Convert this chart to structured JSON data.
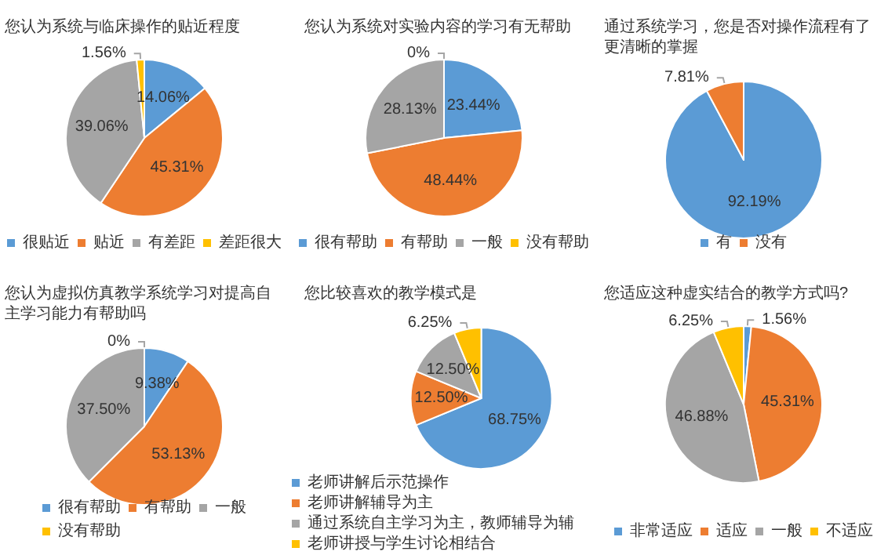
{
  "chart_data": [
    {
      "type": "pie",
      "title": "您认为系统与临床操作的贴近程度",
      "categories": [
        "很贴近",
        "贴近",
        "有差距",
        "差距很大"
      ],
      "values": [
        14.06,
        45.31,
        39.06,
        1.56
      ],
      "colors": [
        "#5b9bd5",
        "#ed7d31",
        "#a5a5a5",
        "#ffc000"
      ],
      "value_labels": [
        "14.06%",
        "45.31%",
        "39.06%",
        "1.56%"
      ],
      "legend": "bottom"
    },
    {
      "type": "pie",
      "title": "您认为系统对实验内容的学习有无帮助",
      "categories": [
        "很有帮助",
        "有帮助",
        "一般",
        "没有帮助"
      ],
      "values": [
        23.44,
        48.44,
        28.13,
        0
      ],
      "colors": [
        "#5b9bd5",
        "#ed7d31",
        "#a5a5a5",
        "#ffc000"
      ],
      "value_labels": [
        "23.44%",
        "48.44%",
        "28.13%",
        "0%"
      ],
      "legend": "bottom"
    },
    {
      "type": "pie",
      "title": "通过系统学习，您是否对操作流程有了更清晰的掌握",
      "categories": [
        "有",
        "没有"
      ],
      "values": [
        92.19,
        7.81
      ],
      "colors": [
        "#5b9bd5",
        "#ed7d31"
      ],
      "value_labels": [
        "92.19%",
        "7.81%"
      ],
      "legend": "bottom"
    },
    {
      "type": "pie",
      "title": "您认为虚拟仿真教学系统学习对提高自主学习能力有帮助吗",
      "categories": [
        "很有帮助",
        "有帮助",
        "一般",
        "没有帮助"
      ],
      "values": [
        9.38,
        53.13,
        37.5,
        0
      ],
      "colors": [
        "#5b9bd5",
        "#ed7d31",
        "#a5a5a5",
        "#ffc000"
      ],
      "value_labels": [
        "9.38%",
        "53.13%",
        "37.50%",
        "0%"
      ],
      "legend": "bottom"
    },
    {
      "type": "pie",
      "title": "您比较喜欢的教学模式是",
      "categories": [
        "老师讲解后示范操作",
        "老师讲解辅导为主",
        "通过系统自主学习为主，教师辅导为辅",
        "老师讲授与学生讨论相结合"
      ],
      "values": [
        68.75,
        12.5,
        12.5,
        6.25
      ],
      "colors": [
        "#5b9bd5",
        "#ed7d31",
        "#a5a5a5",
        "#ffc000"
      ],
      "value_labels": [
        "68.75%",
        "12.50%",
        "12.50%",
        "6.25%"
      ],
      "legend": "bottom left"
    },
    {
      "type": "pie",
      "title": "您适应这种虚实结合的教学方式吗?",
      "categories": [
        "非常适应",
        "适应",
        "一般",
        "不适应"
      ],
      "values": [
        1.56,
        45.31,
        46.88,
        6.25
      ],
      "colors": [
        "#5b9bd5",
        "#ed7d31",
        "#a5a5a5",
        "#ffc000"
      ],
      "value_labels": [
        "1.56%",
        "45.31%",
        "46.88%",
        "6.25%"
      ],
      "legend": "bottom"
    }
  ]
}
